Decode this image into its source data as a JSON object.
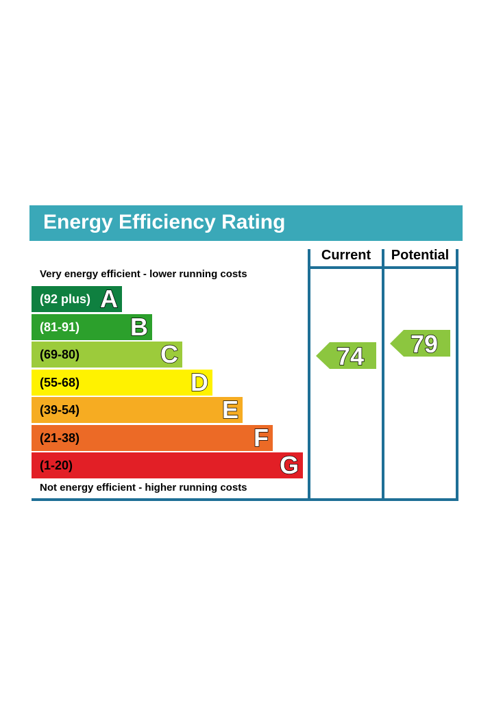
{
  "title": "Energy Efficiency Rating",
  "columns": {
    "current": "Current",
    "potential": "Potential"
  },
  "top_caption": "Very energy efficient - lower running costs",
  "bottom_caption": "Not energy efficient - higher running costs",
  "colors": {
    "title_bar": "#3aa8b8",
    "frame": "#1e6f96",
    "arrow_fill": "#8cc63f"
  },
  "chart_data": {
    "type": "bar",
    "categories": [
      "A",
      "B",
      "C",
      "D",
      "E",
      "F",
      "G"
    ],
    "bands": [
      {
        "letter": "A",
        "range": "(92 plus)",
        "min": 92,
        "max": null,
        "color": "#0f8040",
        "text_color": "#ffffff"
      },
      {
        "letter": "B",
        "range": "(81-91)",
        "min": 81,
        "max": 91,
        "color": "#2ca02c",
        "text_color": "#ffffff"
      },
      {
        "letter": "C",
        "range": "(69-80)",
        "min": 69,
        "max": 80,
        "color": "#9ccb3b",
        "text_color": "#000000"
      },
      {
        "letter": "D",
        "range": "(55-68)",
        "min": 55,
        "max": 68,
        "color": "#fff200",
        "text_color": "#000000"
      },
      {
        "letter": "E",
        "range": "(39-54)",
        "min": 39,
        "max": 54,
        "color": "#f6ac22",
        "text_color": "#000000"
      },
      {
        "letter": "F",
        "range": "(21-38)",
        "min": 21,
        "max": 38,
        "color": "#ec6a26",
        "text_color": "#000000"
      },
      {
        "letter": "G",
        "range": "(1-20)",
        "min": 1,
        "max": 20,
        "color": "#e21f26",
        "text_color": "#000000"
      }
    ],
    "current": 74,
    "potential": 79
  }
}
